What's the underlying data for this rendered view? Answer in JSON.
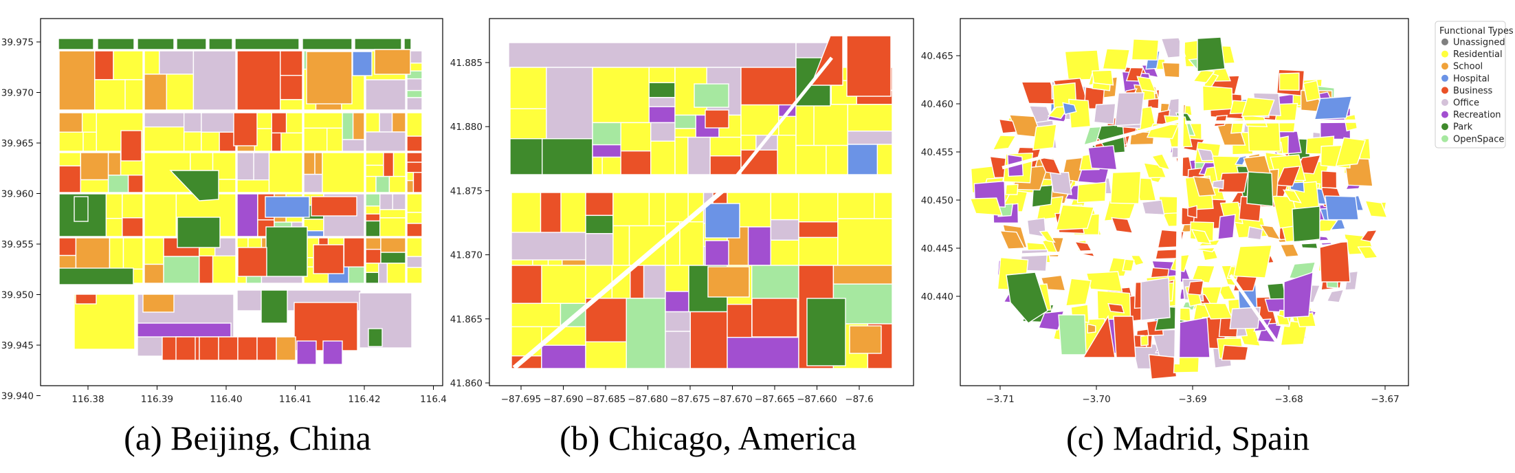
{
  "colors": {
    "Unassigned": "#808080",
    "Residential": "#ffff3c",
    "School": "#f0a23a",
    "Hospital": "#6b93e6",
    "Business": "#ea5127",
    "Office": "#d4c1d9",
    "Recreation": "#a24fd0",
    "Park": "#3f8a2c",
    "OpenSpace": "#a6e8a0"
  },
  "legend": {
    "title": "Functional Types",
    "items": [
      "Unassigned",
      "Residential",
      "School",
      "Hospital",
      "Business",
      "Office",
      "Recreation",
      "Park",
      "OpenSpace"
    ]
  },
  "maps": [
    {
      "id": "beijing",
      "caption": "(a) Beijing, China",
      "xticks": [
        "116.38",
        "116.39",
        "116.40",
        "116.41",
        "116.42",
        "116.4"
      ],
      "yticks": [
        "39.975",
        "39.970",
        "39.965",
        "39.960",
        "39.955",
        "39.950",
        "39.945",
        "39.940"
      ]
    },
    {
      "id": "chicago",
      "caption": "(b) Chicago, America",
      "xticks": [
        "−87.695",
        "−87.690",
        "−87.685",
        "−87.680",
        "−87.675",
        "−87.670",
        "−87.665",
        "−87.660",
        "−87.6"
      ],
      "yticks": [
        "41.885",
        "41.880",
        "41.875",
        "41.870",
        "41.865",
        "41.860"
      ]
    },
    {
      "id": "madrid",
      "caption": "(c) Madrid, Spain",
      "xticks": [
        "−3.71",
        "−3.70",
        "−3.69",
        "−3.68",
        "−3.67"
      ],
      "yticks": [
        "40.465",
        "40.460",
        "40.455",
        "40.450",
        "40.445",
        "40.440"
      ]
    }
  ]
}
